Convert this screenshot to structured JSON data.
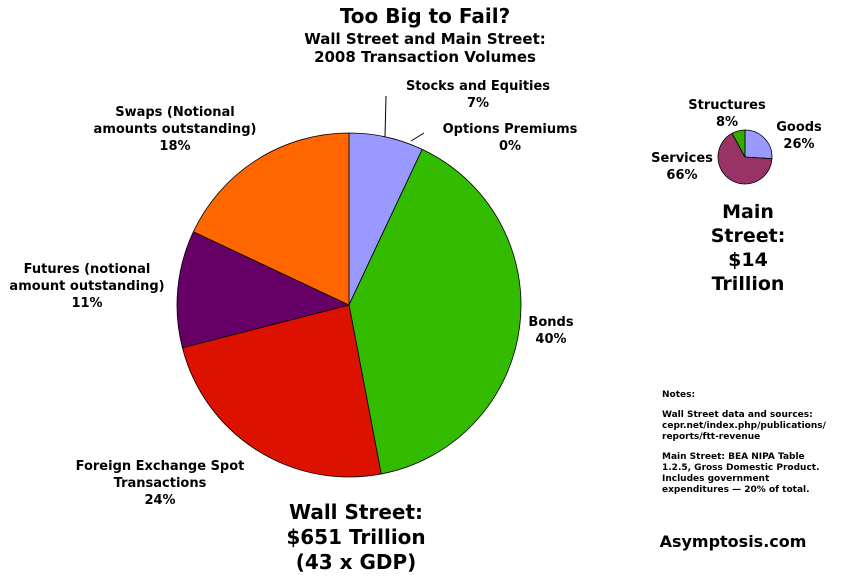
{
  "title": "Too Big to Fail?",
  "subtitle": "Wall Street and Main Street:\n2008 Transaction Volumes",
  "chart_data": [
    {
      "type": "pie",
      "caption": "Wall Street:\n$651 Trillion\n(43 x GDP)",
      "categories": [
        "Stocks and Equities",
        "Options Premiums",
        "Bonds",
        "Foreign Exchange Spot\nTransactions",
        "Futures (notional\namount outstanding)",
        "Swaps (Notional\namounts outstanding)"
      ],
      "values": [
        7,
        0,
        40,
        24,
        11,
        18
      ],
      "value_labels": [
        "7%",
        "0%",
        "40%",
        "24%",
        "11%",
        "18%"
      ],
      "colors": [
        "#9999ff",
        "#993366",
        "#33bb00",
        "#dd1100",
        "#660066",
        "#ff6600"
      ]
    },
    {
      "type": "pie",
      "caption": "Main Street:\n$14 Trillion",
      "categories": [
        "Goods",
        "Services",
        "Structures"
      ],
      "values": [
        26,
        66,
        8
      ],
      "value_labels": [
        "26%",
        "66%",
        "8%"
      ],
      "colors": [
        "#9999ff",
        "#993366",
        "#33aa00"
      ]
    }
  ],
  "notes": [
    "Notes:",
    "Wall Street data and sources:\ncepr.net/index.php/publications/\nreports/ftt-revenue",
    "Main Street: BEA NIPA Table\n1.2.5, Gross Domestic Product.\nIncludes government\nexpenditures — 20% of total."
  ],
  "credit": "Asymptosis.com"
}
